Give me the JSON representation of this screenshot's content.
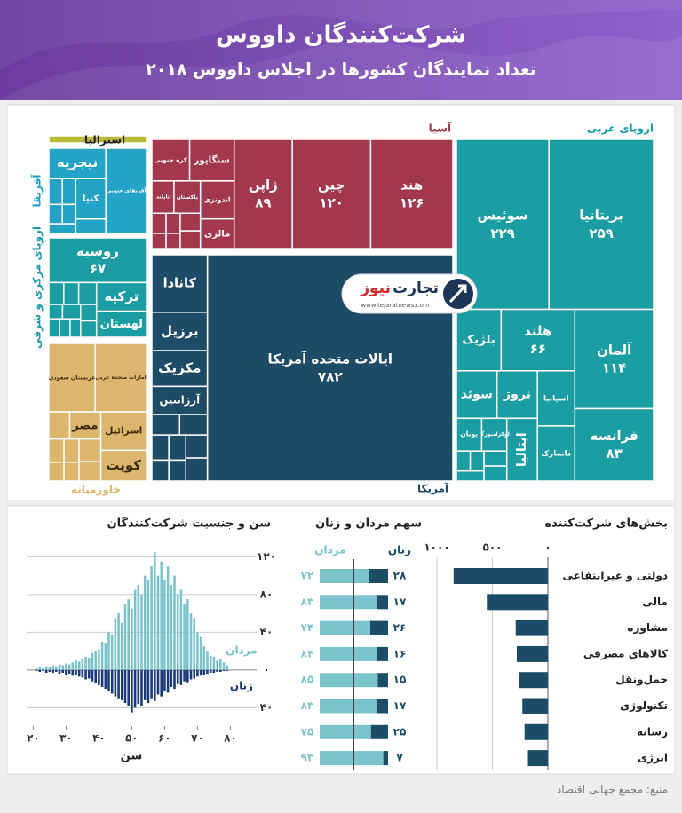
{
  "header": {
    "title": "شرکت‌کنندگان داووس",
    "subtitle": "تعداد نمایندگان کشورها در اجلاس داووس ۲۰۱۸"
  },
  "logo": {
    "brand_a": "تجارت",
    "brand_b": "نیوز",
    "url": "www.tejaratnews.com"
  },
  "source": "منبع: مجمع جهانی اقتصاد",
  "chart_data": [
    {
      "type": "treemap",
      "groups": [
        {
          "name": "اروپای غربی",
          "color": "#1a9ea4",
          "categories": [
            "بریتانیا",
            "سوئیس",
            "آلمان",
            "فرانسه",
            "هلند",
            "بلژیک",
            "اسپانیا",
            "دانمارک",
            "نروژ",
            "سوئد",
            "ایتالیا",
            "لوکزامبورگ",
            "یونان",
            null,
            null,
            null,
            null,
            null
          ],
          "values": [
            259,
            229,
            114,
            83,
            66,
            40,
            30,
            30,
            28,
            28,
            28,
            12,
            12,
            5,
            5,
            4,
            4,
            4
          ],
          "value_labels": [
            "۲۵۹",
            "۲۲۹",
            "۱۱۴",
            "۸۳",
            "۶۶",
            null,
            null,
            null,
            null,
            null,
            null,
            null,
            null,
            null,
            null,
            null,
            null,
            null
          ]
        },
        {
          "name": "آسیا",
          "color": "#a3384c",
          "categories": [
            "هند",
            "چین",
            "ژاپن",
            "سنگاپور",
            "کره جنوبی",
            "اندونزی",
            "مالزی",
            "پاکستان",
            "تایلند",
            null,
            null,
            null,
            null,
            null,
            null
          ],
          "values": [
            126,
            120,
            89,
            26,
            22,
            18,
            14,
            12,
            10,
            5,
            5,
            4,
            4,
            3,
            3
          ],
          "value_labels": [
            "۱۲۶",
            "۱۲۰",
            "۸۹",
            null,
            null,
            null,
            null,
            null,
            null,
            null,
            null,
            null,
            null,
            null,
            null
          ]
        },
        {
          "name": "آمریکا",
          "color": "#1d4c68",
          "categories": [
            "ایالات متحده آمریکا",
            "کانادا",
            "برزیل",
            "مکزیک",
            "آرژانتین",
            null,
            null,
            null,
            null,
            null,
            null,
            null,
            null
          ],
          "values": [
            782,
            45,
            30,
            28,
            22,
            8,
            8,
            7,
            7,
            6,
            6,
            5,
            5
          ],
          "value_labels": [
            "۷۸۲",
            null,
            null,
            null,
            null,
            null,
            null,
            null,
            null,
            null,
            null,
            null,
            null
          ]
        },
        {
          "name": "استرالیا",
          "color": "#b8bb3c",
          "categories": [
            null
          ],
          "values": [
            12
          ],
          "value_labels": [
            null
          ]
        },
        {
          "name": "آفریقا",
          "color": "#23a4c6",
          "categories": [
            "آفریقای جنوبی",
            "نیجریه",
            "کنیا",
            null,
            null,
            null,
            null,
            null,
            null
          ],
          "values": [
            40,
            20,
            14,
            5,
            4,
            4,
            3,
            3,
            3
          ],
          "value_labels": [
            null,
            null,
            null,
            null,
            null,
            null,
            null,
            null,
            null
          ]
        },
        {
          "name": "اروپای مرکزی و شرقی",
          "color": "#1a9ea4",
          "categories": [
            "روسیه",
            "ترکیه",
            "لهستان",
            null,
            null,
            null,
            null,
            null,
            null,
            null,
            null,
            null,
            null
          ],
          "values": [
            67,
            22,
            20,
            6,
            5,
            5,
            4,
            4,
            4,
            3,
            3,
            3,
            3
          ],
          "value_labels": [
            "۶۷",
            null,
            null,
            null,
            null,
            null,
            null,
            null,
            null,
            null,
            null,
            null,
            null
          ]
        },
        {
          "name": "خاورمیانه",
          "color": "#deb56c",
          "categories": [
            "امارات متحده عربی",
            "عربستان سعودی",
            "اسرائیل",
            "کویت",
            "مصر",
            null,
            null,
            null,
            null,
            null,
            null,
            null
          ],
          "values": [
            50,
            45,
            25,
            20,
            12,
            8,
            7,
            6,
            5,
            5,
            4,
            4
          ],
          "value_labels": [
            null,
            null,
            null,
            null,
            null,
            null,
            null,
            null,
            null,
            null,
            null,
            null
          ]
        }
      ]
    },
    {
      "type": "bar",
      "orientation": "horizontal",
      "title": "بخش‌های شرکت‌کننده",
      "categories": [
        "دولتی و غیرانتفاعی",
        "مالی",
        "مشاوره",
        "کالاهای مصرفی",
        "حمل‌ونقل",
        "تکنولوژی",
        "رسانه",
        "انرژی"
      ],
      "values": [
        850,
        550,
        290,
        280,
        260,
        230,
        210,
        180
      ],
      "color": "#1d4c68",
      "xlim": [
        0,
        1000
      ],
      "xaxis_reversed": true,
      "xticks": [
        {
          "value": 0,
          "label": "۰"
        },
        {
          "value": 500,
          "label": "۵۰۰"
        },
        {
          "value": 1000,
          "label": "۱۰۰۰"
        }
      ],
      "grid": true
    },
    {
      "type": "stacked_bar_100",
      "title": "سهم مردان و زنان",
      "xlim": [
        0,
        100
      ],
      "reference_line": 50,
      "series": [
        {
          "name": "مردان",
          "color": "#7cc4cb",
          "values": [
            72,
            83,
            74,
            84,
            85,
            83,
            75,
            93
          ],
          "value_labels": [
            "۷۲",
            "۸۳",
            "۷۴",
            "۸۴",
            "۸۵",
            "۸۳",
            "۷۵",
            "۹۳"
          ]
        },
        {
          "name": "زنان",
          "color": "#1d4c68",
          "values": [
            28,
            17,
            26,
            16,
            15,
            17,
            25,
            7
          ],
          "value_labels": [
            "۲۸",
            "۱۷",
            "۲۶",
            "۱۶",
            "۱۵",
            "۱۷",
            "۲۵",
            "۷"
          ]
        }
      ]
    },
    {
      "type": "bar",
      "title": "سن و جنسیت شرکت‌کنندگان",
      "xlabel": "سن",
      "x": [
        21,
        22,
        23,
        24,
        25,
        26,
        27,
        28,
        29,
        30,
        31,
        32,
        33,
        34,
        35,
        36,
        37,
        38,
        39,
        40,
        41,
        42,
        43,
        44,
        45,
        46,
        47,
        48,
        49,
        50,
        51,
        52,
        53,
        54,
        55,
        56,
        57,
        58,
        59,
        60,
        61,
        62,
        63,
        64,
        65,
        66,
        67,
        68,
        69,
        70,
        71,
        72,
        73,
        74,
        75,
        76,
        77,
        78,
        79
      ],
      "series": [
        {
          "name": "مردان",
          "color": "#7cc4cb",
          "values": [
            2,
            3,
            2,
            4,
            3,
            5,
            4,
            6,
            5,
            7,
            6,
            8,
            10,
            9,
            12,
            14,
            13,
            18,
            20,
            22,
            30,
            28,
            40,
            38,
            55,
            60,
            50,
            70,
            75,
            65,
            85,
            90,
            80,
            100,
            95,
            110,
            125,
            100,
            115,
            95,
            110,
            90,
            100,
            80,
            85,
            70,
            75,
            60,
            55,
            40,
            35,
            25,
            20,
            15,
            14,
            10,
            12,
            8,
            5
          ]
        },
        {
          "name": "زنان",
          "color": "#1b3a7a",
          "values": [
            -1,
            -2,
            -1,
            -3,
            -2,
            -3,
            -2,
            -4,
            -3,
            -5,
            -4,
            -6,
            -5,
            -7,
            -8,
            -10,
            -9,
            -12,
            -14,
            -16,
            -18,
            -20,
            -22,
            -25,
            -28,
            -30,
            -32,
            -35,
            -38,
            -45,
            -40,
            -36,
            -38,
            -32,
            -35,
            -30,
            -33,
            -26,
            -28,
            -22,
            -24,
            -18,
            -20,
            -15,
            -16,
            -12,
            -13,
            -10,
            -9,
            -7,
            -6,
            -5,
            -4,
            -3,
            -3,
            -2,
            -2,
            -1,
            -1
          ]
        }
      ],
      "xlim": [
        18,
        88
      ],
      "ylim": [
        -50,
        125
      ],
      "xticks": [
        {
          "value": 20,
          "label": "۲۰"
        },
        {
          "value": 30,
          "label": "۳۰"
        },
        {
          "value": 40,
          "label": "۴۰"
        },
        {
          "value": 50,
          "label": "۵۰"
        },
        {
          "value": 60,
          "label": "۶۰"
        },
        {
          "value": 70,
          "label": "۷۰"
        },
        {
          "value": 80,
          "label": "۸۰"
        }
      ],
      "yticks": [
        {
          "value": -40,
          "label": "۴۰"
        },
        {
          "value": 0,
          "label": "۰"
        },
        {
          "value": 40,
          "label": "۴۰"
        },
        {
          "value": 80,
          "label": "۸۰"
        },
        {
          "value": 120,
          "label": "۱۲۰"
        }
      ],
      "grid": true
    }
  ]
}
